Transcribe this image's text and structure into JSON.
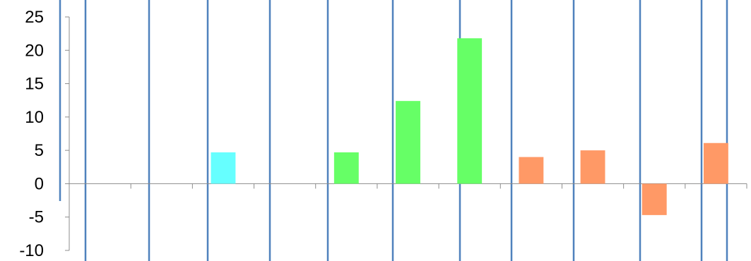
{
  "chart_data": {
    "type": "bar",
    "title": "",
    "xlabel": "",
    "ylabel": "",
    "ylim": [
      -10,
      25
    ],
    "yticks": [
      "-10",
      "-5",
      "0",
      "5",
      "10",
      "15",
      "20",
      "25"
    ],
    "categories": [
      "",
      "",
      "",
      "",
      "",
      "",
      "",
      "",
      "",
      "",
      ""
    ],
    "values": [
      0,
      0,
      4.7,
      0,
      4.7,
      12.4,
      21.8,
      4.0,
      5.0,
      -4.7,
      6.1
    ],
    "bar_colors": [
      "#66ffff",
      "#66ffff",
      "#66ffff",
      "#66ff66",
      "#66ff66",
      "#66ff66",
      "#66ff66",
      "#ff9966",
      "#ff9966",
      "#ff9966",
      "#ff9966"
    ],
    "grid": false,
    "legend": "none",
    "overlay_line_color": "#4f81bd"
  }
}
